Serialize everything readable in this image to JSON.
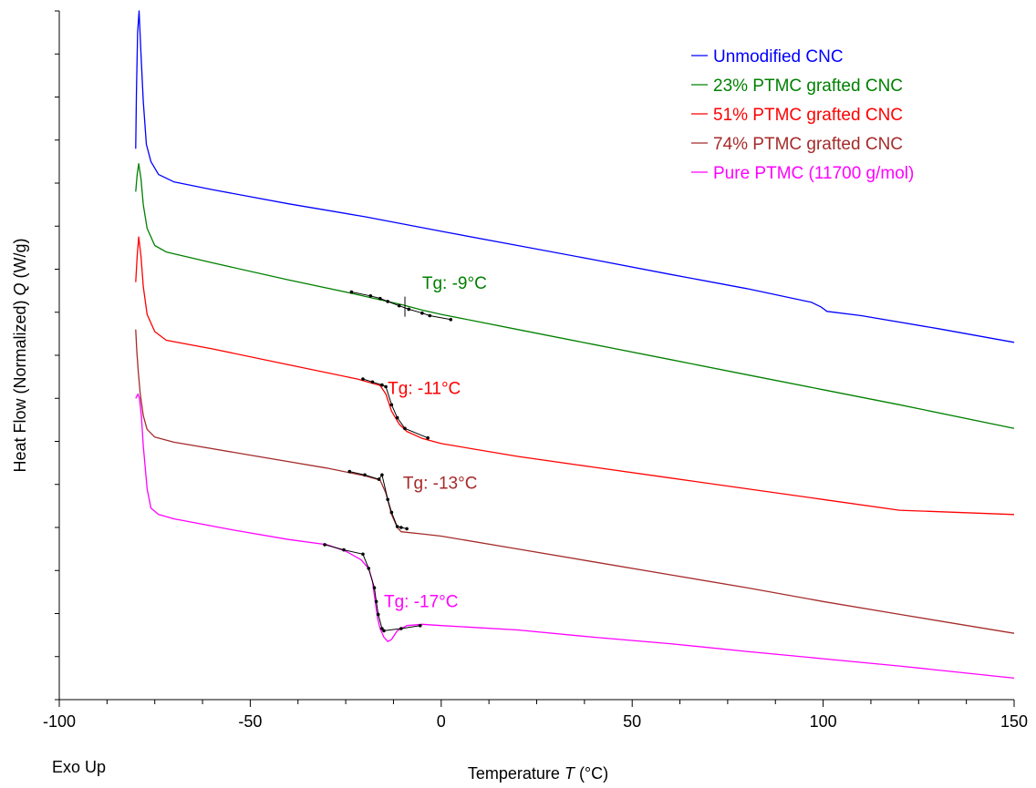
{
  "chart_data": {
    "type": "line",
    "title": "",
    "xlabel": "Temperature T (°C)",
    "xlabel_text": "Temperature ",
    "xlabel_symbol": "T",
    "xlabel_unit": " (°C)",
    "ylabel": "Heat Flow (Normalized)  Q (W/g)",
    "ylabel_text": "Heat Flow (Normalized)  ",
    "ylabel_symbol": "Q",
    "ylabel_unit": " (W/g)",
    "corner_note": "Exo Up",
    "xlim": [
      -100,
      150
    ],
    "x_ticks": [
      -100,
      -50,
      0,
      50,
      100,
      150
    ],
    "x_tick_labels": [
      "-100",
      "-50",
      "0",
      "50",
      "100",
      "150"
    ],
    "ylim": [
      0,
      16
    ],
    "y_ticks_unlabeled": [
      0,
      1,
      2,
      3,
      4,
      5,
      6,
      7,
      8,
      9,
      10,
      11,
      12,
      13,
      14,
      15,
      16
    ],
    "grid": false,
    "legend_position": "top-right",
    "series": [
      {
        "name": "Unmodified CNC",
        "color": "#0000ff",
        "points": [
          [
            -80,
            12.8
          ],
          [
            -79.8,
            14.1
          ],
          [
            -79.5,
            15.5
          ],
          [
            -79.1,
            16.0
          ],
          [
            -78.6,
            15.0
          ],
          [
            -78,
            13.9
          ],
          [
            -77.2,
            12.9
          ],
          [
            -76,
            12.5
          ],
          [
            -74,
            12.2
          ],
          [
            -70,
            12.03
          ],
          [
            -60,
            11.85
          ],
          [
            -40,
            11.52
          ],
          [
            -20,
            11.22
          ],
          [
            0,
            10.88
          ],
          [
            20,
            10.55
          ],
          [
            40,
            10.22
          ],
          [
            60,
            9.88
          ],
          [
            80,
            9.55
          ],
          [
            97,
            9.23
          ],
          [
            99.5,
            9.12
          ],
          [
            101,
            9.02
          ],
          [
            110,
            8.92
          ],
          [
            130,
            8.62
          ],
          [
            150,
            8.3
          ]
        ]
      },
      {
        "name": "23% PTMC grafted CNC",
        "color": "#008000",
        "points": [
          [
            -80,
            11.8
          ],
          [
            -79.6,
            12.2
          ],
          [
            -79.2,
            12.45
          ],
          [
            -78.6,
            12.1
          ],
          [
            -78,
            11.5
          ],
          [
            -77,
            10.95
          ],
          [
            -75,
            10.55
          ],
          [
            -72,
            10.4
          ],
          [
            -60,
            10.15
          ],
          [
            -40,
            9.75
          ],
          [
            -24,
            9.45
          ],
          [
            -15,
            9.27
          ],
          [
            -10,
            9.17
          ],
          [
            -5,
            9.05
          ],
          [
            0,
            8.95
          ],
          [
            20,
            8.6
          ],
          [
            40,
            8.25
          ],
          [
            60,
            7.9
          ],
          [
            80,
            7.55
          ],
          [
            100,
            7.2
          ],
          [
            120,
            6.85
          ],
          [
            150,
            6.3
          ]
        ]
      },
      {
        "name": "51% PTMC grafted CNC",
        "color": "#ff0000",
        "points": [
          [
            -80,
            9.7
          ],
          [
            -79.6,
            10.3
          ],
          [
            -79.2,
            10.75
          ],
          [
            -78.6,
            10.3
          ],
          [
            -78,
            9.6
          ],
          [
            -77,
            8.95
          ],
          [
            -75,
            8.55
          ],
          [
            -72,
            8.35
          ],
          [
            -60,
            8.15
          ],
          [
            -40,
            7.78
          ],
          [
            -22,
            7.45
          ],
          [
            -16,
            7.3
          ],
          [
            -14.5,
            7.1
          ],
          [
            -13,
            6.7
          ],
          [
            -11,
            6.4
          ],
          [
            -9,
            6.23
          ],
          [
            -5,
            6.07
          ],
          [
            0,
            5.95
          ],
          [
            20,
            5.65
          ],
          [
            40,
            5.4
          ],
          [
            60,
            5.15
          ],
          [
            80,
            4.9
          ],
          [
            100,
            4.65
          ],
          [
            120,
            4.4
          ],
          [
            150,
            4.3
          ]
        ]
      },
      {
        "name": "74% PTMC grafted CNC",
        "color": "#a52a2a",
        "points": [
          [
            -80,
            8.6
          ],
          [
            -79.7,
            8.1
          ],
          [
            -79.3,
            7.6
          ],
          [
            -78.8,
            7.1
          ],
          [
            -78,
            6.6
          ],
          [
            -77,
            6.28
          ],
          [
            -75,
            6.1
          ],
          [
            -70,
            5.98
          ],
          [
            -50,
            5.68
          ],
          [
            -30,
            5.38
          ],
          [
            -20,
            5.2
          ],
          [
            -16,
            5.1
          ],
          [
            -14.5,
            4.8
          ],
          [
            -13,
            4.3
          ],
          [
            -11.5,
            4.0
          ],
          [
            -10.5,
            3.9
          ],
          [
            -5,
            3.85
          ],
          [
            0,
            3.8
          ],
          [
            20,
            3.5
          ],
          [
            40,
            3.2
          ],
          [
            60,
            2.9
          ],
          [
            80,
            2.6
          ],
          [
            100,
            2.28
          ],
          [
            120,
            1.98
          ],
          [
            150,
            1.54
          ]
        ]
      },
      {
        "name": "Pure PTMC (11700 g/mol)",
        "color": "#ff00ff",
        "points": [
          [
            -80,
            7.0
          ],
          [
            -79.4,
            7.1
          ],
          [
            -79,
            7.0
          ],
          [
            -78.5,
            6.6
          ],
          [
            -78,
            5.9
          ],
          [
            -77,
            4.9
          ],
          [
            -76,
            4.45
          ],
          [
            -74,
            4.3
          ],
          [
            -70,
            4.2
          ],
          [
            -55,
            3.95
          ],
          [
            -40,
            3.72
          ],
          [
            -30,
            3.6
          ],
          [
            -25,
            3.45
          ],
          [
            -21,
            3.25
          ],
          [
            -19,
            3.05
          ],
          [
            -18,
            2.75
          ],
          [
            -17.3,
            2.3
          ],
          [
            -16.7,
            1.9
          ],
          [
            -16,
            1.65
          ],
          [
            -15,
            1.45
          ],
          [
            -14,
            1.35
          ],
          [
            -13,
            1.4
          ],
          [
            -11.5,
            1.6
          ],
          [
            -9,
            1.72
          ],
          [
            -5,
            1.75
          ],
          [
            0,
            1.72
          ],
          [
            20,
            1.62
          ],
          [
            40,
            1.45
          ],
          [
            60,
            1.3
          ],
          [
            80,
            1.12
          ],
          [
            100,
            0.95
          ],
          [
            120,
            0.78
          ],
          [
            150,
            0.5
          ]
        ]
      }
    ],
    "tg_fits": [
      {
        "color": "#000000",
        "points": [
          [
            -23.5,
            9.47
          ],
          [
            -18.5,
            9.38
          ],
          [
            -16,
            9.32
          ],
          [
            -14,
            9.25
          ],
          [
            -11,
            9.15
          ],
          [
            -8.5,
            9.07
          ],
          [
            -5,
            8.98
          ],
          [
            -3,
            8.92
          ],
          [
            2.5,
            8.83
          ]
        ],
        "marker": [
          -9.5,
          9.15
        ]
      },
      {
        "color": "#000000",
        "points": [
          [
            -20.5,
            7.45
          ],
          [
            -18,
            7.38
          ],
          [
            -15.5,
            7.31
          ],
          [
            -14.5,
            7.27
          ],
          [
            -13,
            6.85
          ],
          [
            -11.5,
            6.55
          ],
          [
            -9.5,
            6.3
          ],
          [
            -3.5,
            6.08
          ]
        ]
      },
      {
        "color": "#000000",
        "points": [
          [
            -24,
            5.3
          ],
          [
            -20,
            5.22
          ],
          [
            -16.3,
            5.12
          ],
          [
            -15.5,
            5.22
          ],
          [
            -14,
            4.65
          ],
          [
            -13,
            4.35
          ],
          [
            -11.5,
            4.02
          ],
          [
            -10.5,
            4.0
          ],
          [
            -9,
            3.97
          ]
        ]
      },
      {
        "color": "#000000",
        "points": [
          [
            -30.5,
            3.6
          ],
          [
            -25.5,
            3.48
          ],
          [
            -20.5,
            3.38
          ],
          [
            -19,
            3.05
          ],
          [
            -17.5,
            2.6
          ],
          [
            -17,
            2.28
          ],
          [
            -16.5,
            1.98
          ],
          [
            -15.5,
            1.65
          ],
          [
            -15,
            1.6
          ],
          [
            -10.5,
            1.65
          ],
          [
            -5.5,
            1.72
          ]
        ]
      }
    ],
    "annotations": [
      {
        "text": "Tg: -9°C",
        "x": -5,
        "y": 9.55,
        "color": "#008000"
      },
      {
        "text": "Tg: -11°C",
        "x": -14,
        "y": 7.1,
        "color": "#ff0000"
      },
      {
        "text": "Tg: -13°C",
        "x": -10,
        "y": 4.9,
        "color": "#a52a2a"
      },
      {
        "text": "Tg: -17°C",
        "x": -15,
        "y": 2.15,
        "color": "#ff00ff"
      }
    ]
  }
}
